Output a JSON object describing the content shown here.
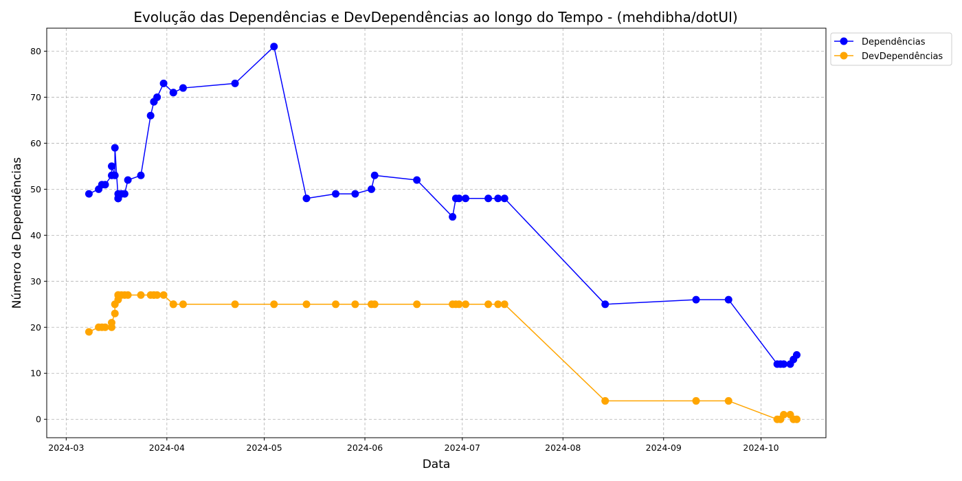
{
  "chart_data": {
    "type": "line",
    "title": "Evolução das Dependências e DevDependências ao longo do Tempo - (mehdibha/dotUI)",
    "xlabel": "Data",
    "ylabel": "Número de Dependências",
    "xlim": [
      "2024-02-24",
      "2024-10-21"
    ],
    "ylim": [
      -4,
      85
    ],
    "x_ticks": [
      "2024-03",
      "2024-04",
      "2024-05",
      "2024-06",
      "2024-07",
      "2024-08",
      "2024-09",
      "2024-10"
    ],
    "y_ticks": [
      0,
      10,
      20,
      30,
      40,
      50,
      60,
      70,
      80
    ],
    "grid": true,
    "legend_position": "outside-top-right",
    "x": [
      "2024-03-08",
      "2024-03-11",
      "2024-03-12",
      "2024-03-13",
      "2024-03-15",
      "2024-03-15",
      "2024-03-16",
      "2024-03-16",
      "2024-03-17",
      "2024-03-17",
      "2024-03-17",
      "2024-03-17",
      "2024-03-17",
      "2024-03-18",
      "2024-03-19",
      "2024-03-20",
      "2024-03-24",
      "2024-03-27",
      "2024-03-28",
      "2024-03-28",
      "2024-03-29",
      "2024-03-31",
      "2024-04-03",
      "2024-04-03",
      "2024-04-06",
      "2024-04-22",
      "2024-05-04",
      "2024-05-14",
      "2024-05-23",
      "2024-05-29",
      "2024-06-03",
      "2024-06-04",
      "2024-06-17",
      "2024-06-28",
      "2024-06-29",
      "2024-06-30",
      "2024-07-02",
      "2024-07-09",
      "2024-07-12",
      "2024-07-14",
      "2024-08-14",
      "2024-09-11",
      "2024-09-21",
      "2024-10-06",
      "2024-10-07",
      "2024-10-08",
      "2024-10-10",
      "2024-10-11",
      "2024-10-12"
    ],
    "series": [
      {
        "name": "Dependências",
        "color": "#0000ff",
        "values": [
          49,
          50,
          51,
          51,
          53,
          55,
          53,
          59,
          48,
          49,
          48,
          48,
          48,
          49,
          49,
          52,
          53,
          66,
          69,
          69,
          70,
          73,
          71,
          71,
          72,
          73,
          81,
          48,
          49,
          49,
          50,
          53,
          52,
          44,
          48,
          48,
          48,
          48,
          48,
          48,
          25,
          26,
          26,
          12,
          12,
          12,
          12,
          13,
          14
        ]
      },
      {
        "name": "DevDependências",
        "color": "#ffa500",
        "values": [
          19,
          20,
          20,
          20,
          20,
          21,
          23,
          25,
          26,
          27,
          27,
          27,
          27,
          27,
          27,
          27,
          27,
          27,
          27,
          27,
          27,
          27,
          25,
          25,
          25,
          25,
          25,
          25,
          25,
          25,
          25,
          25,
          25,
          25,
          25,
          25,
          25,
          25,
          25,
          25,
          4,
          4,
          4,
          0,
          0,
          1,
          1,
          0,
          0
        ]
      }
    ]
  }
}
